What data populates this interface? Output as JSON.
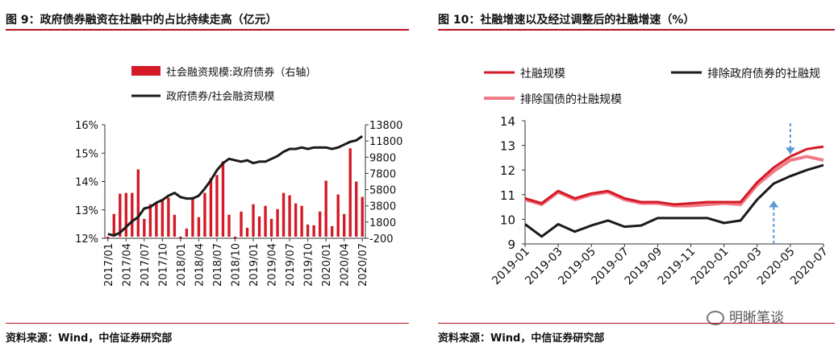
{
  "left": {
    "title": "图 9：政府债券融资在社融中的占比持续走高（亿元）",
    "source": "资料来源：Wind，中信证券研究部",
    "chart_data": {
      "type": "bar+line",
      "legend": [
        "社会融资规模:政府债券（右轴）",
        "政府债券/社会融资规模"
      ],
      "legend_position": "top-center",
      "categories": [
        "2017/01",
        "2017/02",
        "2017/03",
        "2017/04",
        "2017/05",
        "2017/06",
        "2017/07",
        "2017/08",
        "2017/09",
        "2017/10",
        "2017/11",
        "2017/12",
        "2018/01",
        "2018/02",
        "2018/03",
        "2018/04",
        "2018/05",
        "2018/06",
        "2018/07",
        "2018/08",
        "2018/09",
        "2018/10",
        "2018/11",
        "2018/12",
        "2019/01",
        "2019/02",
        "2019/03",
        "2019/04",
        "2019/05",
        "2019/06",
        "2019/07",
        "2019/08",
        "2019/09",
        "2019/10",
        "2019/11",
        "2019/12",
        "2020/01",
        "2020/02",
        "2020/03",
        "2020/04",
        "2020/05",
        "2020/06",
        "2020/07"
      ],
      "x_tick_labels": [
        "2017/01",
        "2017/04",
        "2017/07",
        "2017/10",
        "2018/01",
        "2018/04",
        "2018/07",
        "2018/10",
        "2019/01",
        "2019/04",
        "2019/07",
        "2019/10",
        "2020/01",
        "2020/04",
        "2020/07"
      ],
      "bar_series": {
        "name": "社会融资规模:政府债券（右轴）",
        "axis": "right",
        "values": [
          -200,
          2800,
          5300,
          5400,
          5400,
          8300,
          2200,
          4000,
          4200,
          4600,
          4800,
          2700,
          -150,
          1000,
          4900,
          2400,
          5400,
          7200,
          7600,
          9300,
          2700,
          -150,
          3100,
          1100,
          4000,
          2500,
          3800,
          2200,
          3400,
          5400,
          5100,
          4100,
          3800,
          1500,
          1400,
          3100,
          6900,
          1300,
          5200,
          2800,
          10900,
          6800,
          4900
        ]
      },
      "line_series": {
        "name": "政府债券/社会融资规模",
        "axis": "left",
        "values": [
          12.15,
          12.1,
          12.2,
          12.4,
          12.6,
          12.75,
          13.05,
          13.1,
          13.25,
          13.35,
          13.5,
          13.6,
          13.45,
          13.4,
          13.4,
          13.5,
          13.75,
          14.05,
          14.4,
          14.65,
          14.8,
          14.75,
          14.7,
          14.75,
          14.65,
          14.7,
          14.7,
          14.8,
          14.9,
          15.05,
          15.15,
          15.15,
          15.2,
          15.15,
          15.2,
          15.2,
          15.2,
          15.15,
          15.2,
          15.3,
          15.4,
          15.45,
          15.6
        ]
      },
      "y_left_ticks": [
        "12%",
        "13%",
        "14%",
        "15%",
        "16%"
      ],
      "y_left_range": [
        12,
        16
      ],
      "y_right_ticks": [
        "-200",
        "1800",
        "3800",
        "5800",
        "7800",
        "9800",
        "11800",
        "13800"
      ],
      "y_right_range": [
        -200,
        13800
      ],
      "colors": {
        "bar": "#d41a27",
        "line": "#1a1a1a"
      }
    }
  },
  "right": {
    "title": "图 10：社融增速以及经过调整后的社融增速（%）",
    "source": "资料来源：Wind，中信证券研究部",
    "chart_data": {
      "type": "line",
      "legend": [
        "社融规模",
        "排除政府债券的社融规",
        "排除国债的社融规模"
      ],
      "legend_position": "top",
      "x": [
        "2019-01",
        "2019-02",
        "2019-03",
        "2019-04",
        "2019-05",
        "2019-06",
        "2019-07",
        "2019-08",
        "2019-09",
        "2019-10",
        "2019-11",
        "2019-12",
        "2020-01",
        "2020-02",
        "2020-03",
        "2020-04",
        "2020-05",
        "2020-06",
        "2020-07"
      ],
      "x_tick_labels": [
        "2019-01",
        "2019-03",
        "2019-05",
        "2019-07",
        "2019-09",
        "2019-11",
        "2020-01",
        "2020-03",
        "2020-05",
        "2020-07"
      ],
      "series": [
        {
          "name": "排除国债的社融规模",
          "color": "#f07a86",
          "width": 4,
          "values": [
            10.8,
            10.6,
            11.1,
            10.8,
            11.0,
            11.1,
            10.8,
            10.65,
            10.65,
            10.55,
            10.55,
            10.6,
            10.65,
            10.6,
            11.4,
            11.95,
            12.4,
            12.55,
            12.4
          ]
        },
        {
          "name": "排除政府债券的社融规",
          "color": "#1a1a1a",
          "width": 3,
          "values": [
            9.8,
            9.3,
            9.8,
            9.5,
            9.75,
            9.95,
            9.7,
            9.75,
            10.05,
            10.05,
            10.05,
            10.05,
            9.85,
            9.95,
            10.8,
            11.45,
            11.75,
            12.0,
            12.2
          ]
        },
        {
          "name": "社融规模",
          "color": "#d41a27",
          "width": 3,
          "values": [
            10.85,
            10.65,
            11.15,
            10.85,
            11.05,
            11.15,
            10.85,
            10.7,
            10.7,
            10.6,
            10.65,
            10.7,
            10.7,
            10.7,
            11.5,
            12.1,
            12.55,
            12.85,
            12.95
          ]
        }
      ],
      "y_ticks": [
        "9",
        "10",
        "11",
        "12",
        "13",
        "14"
      ],
      "y_range": [
        9,
        14
      ],
      "annotations": [
        {
          "type": "dashed-arrow-down",
          "x": "2020-05",
          "from_y": 13.9,
          "to_y": 12.65
        },
        {
          "type": "dashed-arrow-up",
          "x": "2020-04",
          "from_y": 9.0,
          "to_y": 10.75
        }
      ],
      "annotation_color": "#5b9bd5"
    }
  },
  "watermark": "明晰笔谈"
}
